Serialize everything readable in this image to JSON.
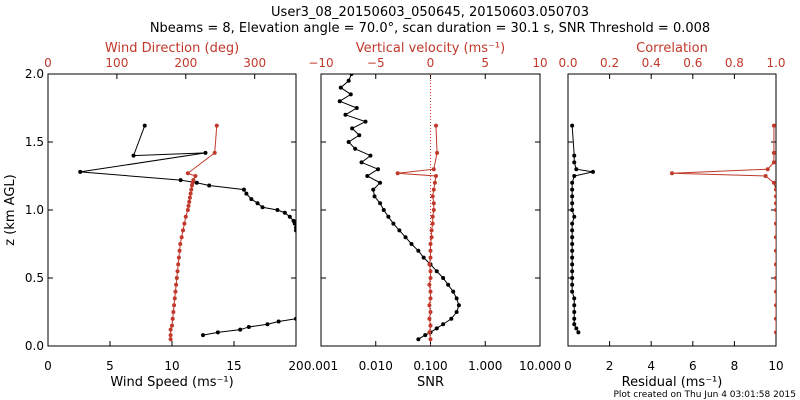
{
  "header": {
    "line1": "User3_08_20150603_050645, 20150603.050703",
    "line2": "Nbeams = 8, Elevation angle = 70.0°, scan duration = 30.1 s, SNR Threshold = 0.008"
  },
  "footer": {
    "created": "Plot created on Thu Jun  4 03:01:58 2015"
  },
  "colors": {
    "black": "#000000",
    "red": "#c0392b"
  },
  "chart_data": [
    {
      "type": "line",
      "ylabel": "z (km AGL)",
      "ylim": [
        0,
        2.0
      ],
      "yticks": [
        "0.0",
        "0.5",
        "1.0",
        "1.5",
        "2.0"
      ],
      "xlabel": "Wind Speed (ms⁻¹)",
      "xlim": [
        0,
        20
      ],
      "xticks": [
        "0",
        "5",
        "10",
        "15",
        "20"
      ],
      "top_label": "Wind Direction (deg)",
      "top_lim": [
        0,
        360
      ],
      "top_ticks": [
        "0",
        "100",
        "200",
        "300"
      ],
      "series": [
        {
          "axis": "bottom",
          "color": "#000000",
          "z": [
            0.08,
            0.1,
            0.12,
            0.14,
            0.16,
            0.18,
            0.2,
            1.62,
            1.4,
            1.42,
            1.28,
            1.22,
            1.2,
            1.18,
            1.15,
            1.12,
            1.08,
            1.05,
            1.02,
            1.0,
            0.98,
            0.95,
            0.92,
            0.9,
            0.87,
            0.85
          ],
          "values": [
            12.5,
            13.7,
            15.5,
            16.2,
            17.7,
            18.6,
            20.0,
            7.8,
            6.9,
            12.7,
            2.6,
            10.7,
            12.0,
            13.0,
            15.8,
            16.0,
            16.4,
            16.9,
            17.3,
            18.5,
            19.1,
            19.5,
            19.8,
            19.9,
            20.0,
            20.0
          ]
        },
        {
          "axis": "top",
          "color": "#c0392b",
          "z": [
            0.05,
            0.08,
            0.12,
            0.15,
            0.2,
            0.25,
            0.3,
            0.35,
            0.4,
            0.45,
            0.5,
            0.55,
            0.6,
            0.65,
            0.7,
            0.75,
            0.8,
            0.85,
            0.9,
            0.95,
            1.0,
            1.03,
            1.06,
            1.09,
            1.12,
            1.15,
            1.18,
            1.2,
            1.22,
            1.25,
            1.27,
            1.42,
            1.62
          ],
          "values": [
            178,
            178,
            178,
            180,
            181,
            182,
            183,
            184,
            185,
            186,
            187,
            188,
            189,
            190,
            191,
            192,
            194,
            196,
            198,
            200,
            203,
            204,
            205,
            206,
            207,
            208,
            209,
            210,
            211,
            214,
            203,
            242,
            245
          ]
        }
      ]
    },
    {
      "type": "line",
      "ylim": [
        0,
        2.0
      ],
      "xlabel": "SNR",
      "xscale": "log",
      "xlim": [
        0.001,
        10
      ],
      "xticks": [
        "0.001",
        "0.010",
        "0.100",
        "1.000",
        "10.000"
      ],
      "top_label": "Vertical velocity (ms⁻¹)",
      "top_lim": [
        -10,
        10
      ],
      "top_ticks": [
        "−10",
        "−5",
        "0",
        "5",
        "10"
      ],
      "series": [
        {
          "axis": "bottom",
          "color": "#000000",
          "z": [
            0.05,
            0.08,
            0.1,
            0.13,
            0.16,
            0.2,
            0.25,
            0.3,
            0.35,
            0.4,
            0.45,
            0.5,
            0.55,
            0.6,
            0.65,
            0.7,
            0.75,
            0.8,
            0.85,
            0.9,
            0.95,
            1.0,
            1.05,
            1.1,
            1.15,
            1.2,
            1.25,
            1.3,
            1.35,
            1.4,
            1.45,
            1.5,
            1.55,
            1.6,
            1.65,
            1.7,
            1.75,
            1.8,
            1.85,
            1.9,
            1.95,
            2.0
          ],
          "values": [
            0.06,
            0.08,
            0.1,
            0.13,
            0.17,
            0.24,
            0.3,
            0.33,
            0.3,
            0.26,
            0.21,
            0.17,
            0.13,
            0.1,
            0.075,
            0.06,
            0.045,
            0.035,
            0.027,
            0.021,
            0.017,
            0.014,
            0.012,
            0.0095,
            0.009,
            0.012,
            0.007,
            0.011,
            0.0055,
            0.008,
            0.0042,
            0.0032,
            0.005,
            0.0037,
            0.0065,
            0.0028,
            0.0045,
            0.0022,
            0.0035,
            0.0023,
            0.0032,
            0.0036
          ]
        },
        {
          "axis": "top",
          "color": "#c0392b",
          "z": [
            0.05,
            0.1,
            0.15,
            0.2,
            0.25,
            0.3,
            0.35,
            0.4,
            0.45,
            0.5,
            0.55,
            0.6,
            0.65,
            0.7,
            0.75,
            0.8,
            0.85,
            0.9,
            0.95,
            1.0,
            1.05,
            1.1,
            1.15,
            1.2,
            1.25,
            1.27,
            1.3,
            1.42,
            1.62
          ],
          "values": [
            0.0,
            -0.1,
            0.0,
            -0.1,
            0.0,
            -0.1,
            0.0,
            0.0,
            -0.1,
            0.0,
            0.0,
            -0.1,
            0.0,
            0.0,
            0.0,
            0.1,
            0.1,
            0.2,
            0.2,
            0.3,
            0.3,
            0.2,
            0.3,
            0.4,
            0.5,
            -3.0,
            0.3,
            0.6,
            0.5
          ]
        }
      ]
    },
    {
      "type": "line",
      "ylim": [
        0,
        2.0
      ],
      "xlabel": "Residual  (ms⁻¹)",
      "xlim": [
        0,
        10
      ],
      "xticks": [
        "0",
        "2",
        "4",
        "6",
        "8",
        "10"
      ],
      "top_label": "Correlation",
      "top_lim": [
        0,
        1
      ],
      "top_ticks": [
        "0.0",
        "0.2",
        "0.4",
        "0.6",
        "0.8",
        "1.0"
      ],
      "series": [
        {
          "axis": "bottom",
          "color": "#000000",
          "z": [
            0.1,
            0.13,
            0.16,
            0.2,
            0.25,
            0.3,
            0.35,
            0.4,
            0.45,
            0.5,
            0.55,
            0.6,
            0.65,
            0.7,
            0.75,
            0.8,
            0.85,
            0.9,
            0.95,
            1.0,
            1.05,
            1.1,
            1.15,
            1.2,
            1.25,
            1.28,
            1.3,
            1.35,
            1.4,
            1.62
          ],
          "values": [
            0.5,
            0.4,
            0.3,
            0.3,
            0.3,
            0.3,
            0.3,
            0.2,
            0.2,
            0.2,
            0.2,
            0.2,
            0.2,
            0.2,
            0.2,
            0.2,
            0.2,
            0.2,
            0.3,
            0.2,
            0.2,
            0.2,
            0.2,
            0.2,
            0.3,
            1.2,
            0.4,
            0.3,
            0.3,
            0.2
          ]
        },
        {
          "axis": "top",
          "color": "#c0392b",
          "z": [
            0.1,
            0.2,
            0.3,
            0.4,
            0.5,
            0.6,
            0.7,
            0.8,
            0.9,
            1.0,
            1.05,
            1.1,
            1.15,
            1.2,
            1.25,
            1.27,
            1.3,
            1.35,
            1.42,
            1.62
          ],
          "values": [
            1.0,
            1.0,
            1.0,
            1.0,
            1.0,
            1.0,
            1.0,
            1.0,
            1.0,
            1.0,
            1.0,
            1.0,
            1.0,
            0.99,
            0.95,
            0.5,
            0.96,
            0.99,
            0.99,
            0.99
          ]
        }
      ]
    }
  ]
}
